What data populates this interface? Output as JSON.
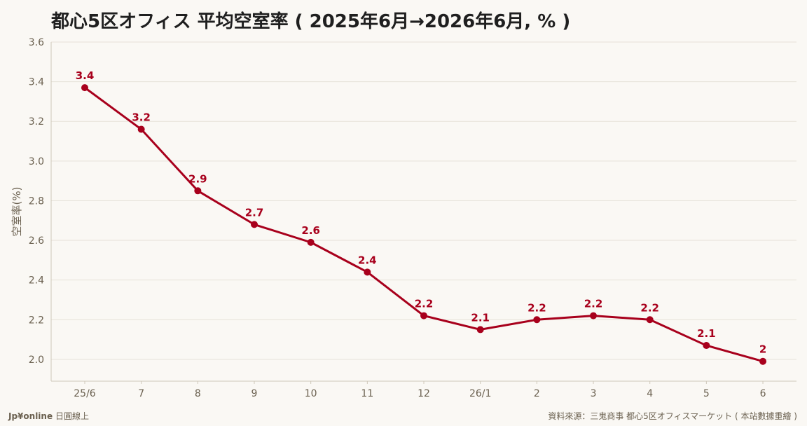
{
  "chart_data": {
    "type": "line",
    "title": "都心5区オフィス 平均空室率 ( 2025年6月→2026年6月, % )",
    "xlabel": "",
    "ylabel": "空室率(%)",
    "categories": [
      "25/6",
      "7",
      "8",
      "9",
      "10",
      "11",
      "12",
      "26/1",
      "2",
      "3",
      "4",
      "5",
      "6"
    ],
    "series": [
      {
        "values": [
          3.37,
          3.16,
          2.85,
          2.68,
          2.59,
          2.44,
          2.22,
          2.15,
          2.2,
          2.22,
          2.2,
          2.07,
          1.99
        ],
        "data_labels": [
          "3.4",
          "3.2",
          "2.9",
          "2.7",
          "2.6",
          "2.4",
          "2.2",
          "2.1",
          "2.2",
          "2.2",
          "2.2",
          "2.1",
          "2"
        ]
      }
    ],
    "ylim": [
      1.89,
      3.6
    ],
    "yticks": [
      "2.0",
      "2.2",
      "2.4",
      "2.6",
      "2.8",
      "3.0",
      "3.2",
      "3.4",
      "3.6"
    ],
    "grid": true,
    "line_color": "#a8001c"
  },
  "footer": {
    "brand": "Jp¥online",
    "brand_sub": "日圓線上",
    "source": "資料來源：三鬼商事 都心5区オフィスマーケット ( 本站數據重繪 )"
  }
}
